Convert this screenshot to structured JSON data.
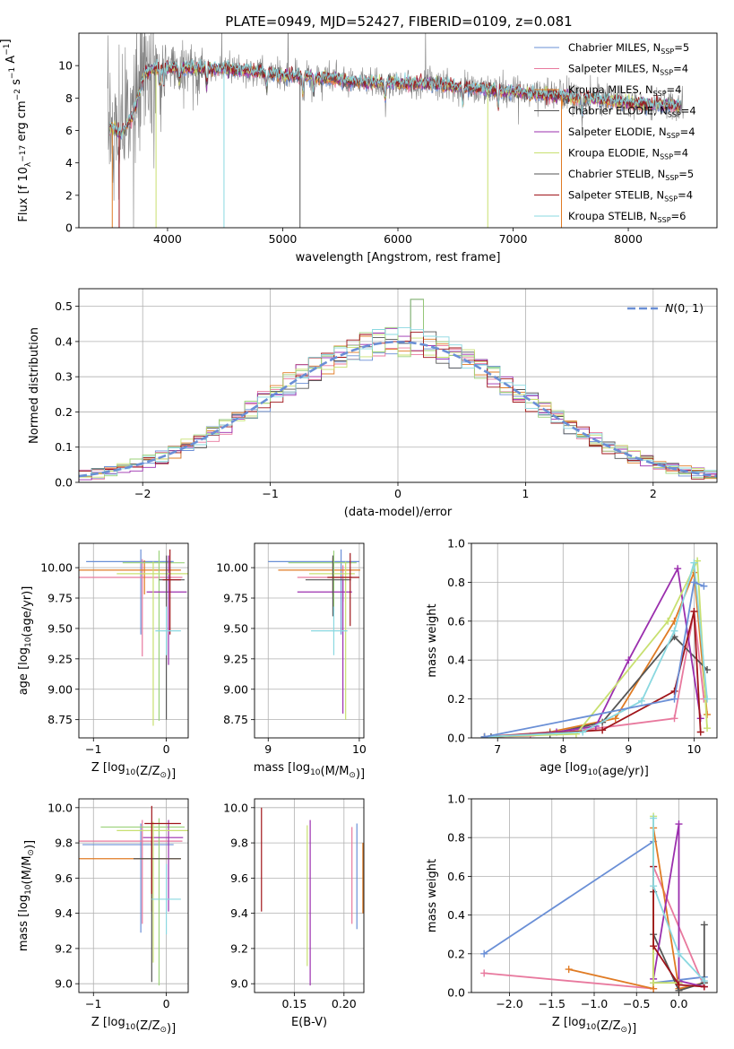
{
  "title": "PLATE=0949, MJD=52427, FIBERID=0109, z=0.081",
  "colors": [
    "#6a8fd6",
    "#e8799e",
    "#e07b24",
    "#555555",
    "#9b2fae",
    "#c8e070",
    "#9bd27a",
    "#a0151a",
    "#8ad8e0"
  ],
  "chart_data": [
    {
      "type": "line",
      "panel": "spectrum",
      "xlabel": "wavelength [Angstrom, rest frame]",
      "ylabel": "Flux [f_λ 10^-17 erg cm^-2 s^-1 A^-1]",
      "xlim": [
        3230,
        8770
      ],
      "ylim": [
        0,
        12
      ],
      "xticks": [
        4000,
        5000,
        6000,
        7000,
        8000
      ],
      "yticks": [
        0,
        2,
        4,
        6,
        8,
        10
      ],
      "grid": false,
      "legend_position": "right",
      "series": [
        {
          "name": "Chabrier MILES, N_SSP=5",
          "color": "#6a8fd6"
        },
        {
          "name": "Salpeter MILES, N_SSP=4",
          "color": "#e8799e"
        },
        {
          "name": "Kroupa MILES, N_SSP=4",
          "color": "#e07b24"
        },
        {
          "name": "Chabrier ELODIE, N_SSP=4",
          "color": "#555555"
        },
        {
          "name": "Salpeter ELODIE, N_SSP=4",
          "color": "#9b2fae"
        },
        {
          "name": "Kroupa ELODIE, N_SSP=4",
          "color": "#c8e070"
        },
        {
          "name": "Chabrier STELIB, N_SSP=5",
          "color": "#555555"
        },
        {
          "name": "Salpeter STELIB, N_SSP=4",
          "color": "#a0151a"
        },
        {
          "name": "Kroupa STELIB, N_SSP=6",
          "color": "#8ad8e0"
        }
      ],
      "continuum_points": {
        "x": [
          3500,
          3600,
          3700,
          3800,
          3900,
          4000,
          4200,
          4500,
          4800,
          5000,
          5300,
          5600,
          6000,
          6300,
          6600,
          7000,
          7300,
          7600,
          8000,
          8400
        ],
        "y": [
          6.2,
          5.8,
          7.0,
          9.6,
          9.8,
          9.9,
          9.8,
          9.8,
          9.6,
          9.4,
          9.3,
          9.0,
          8.9,
          8.9,
          8.6,
          8.4,
          8.2,
          8.0,
          7.7,
          7.5
        ]
      }
    },
    {
      "type": "step",
      "panel": "residuals",
      "xlabel": "(data-model)/error",
      "ylabel": "Normed distribution",
      "xlim": [
        -2.5,
        2.5
      ],
      "ylim": [
        0,
        0.55
      ],
      "xticks": [
        -2,
        -1,
        0,
        1,
        2
      ],
      "yticks": [
        0.0,
        0.1,
        0.2,
        0.3,
        0.4,
        0.5
      ],
      "grid": true,
      "legend_position": "top-right",
      "legend": "N(0,1)",
      "bin_width": 0.1
    },
    {
      "type": "scatter",
      "panel": "age-vs-Z",
      "xlabel": "Z [log10(Z/Z⊙)]",
      "ylabel": "age [log10(age/yr)]",
      "xlim": [
        -1.2,
        0.3
      ],
      "ylim": [
        8.6,
        10.2
      ],
      "xticks": [
        -1,
        0
      ],
      "yticks": [
        8.75,
        9.0,
        9.25,
        9.5,
        9.75,
        10.0
      ],
      "grid": true,
      "points": [
        {
          "x": -0.35,
          "y": 10.05,
          "xerr": [
            0.75,
            0.45
          ],
          "yerr": [
            0.6,
            0.1
          ],
          "color": "#6a8fd6"
        },
        {
          "x": -0.33,
          "y": 9.92,
          "xerr": [
            0.87,
            0.55
          ],
          "yerr": [
            0.65,
            0.15
          ],
          "color": "#e8799e"
        },
        {
          "x": -0.3,
          "y": 9.98,
          "xerr": [
            0.9,
            0.5
          ],
          "yerr": [
            0.2,
            0.08
          ],
          "color": "#e07b24"
        },
        {
          "x": -0.1,
          "y": 10.04,
          "xerr": [
            0.5,
            0.35
          ],
          "yerr": [
            1.3,
            0.1
          ],
          "color": "#9bd27a"
        },
        {
          "x": 0.03,
          "y": 9.8,
          "xerr": [
            0.3,
            0.25
          ],
          "yerr": [
            0.6,
            0.3
          ],
          "color": "#9b2fae"
        },
        {
          "x": -0.18,
          "y": 9.95,
          "xerr": [
            0.5,
            0.5
          ],
          "yerr": [
            1.25,
            0.1
          ],
          "color": "#c8e070"
        },
        {
          "x": 0.0,
          "y": 9.9,
          "xerr": [
            0.1,
            0.25
          ],
          "yerr": [
            1.15,
            0.2
          ],
          "color": "#555555"
        },
        {
          "x": 0.05,
          "y": 9.9,
          "xerr": [
            0.1,
            0.15
          ],
          "yerr": [
            0.45,
            0.25
          ],
          "color": "#a0151a"
        },
        {
          "x": 0.0,
          "y": 9.48,
          "xerr": [
            0.15,
            0.2
          ],
          "yerr": [
            0.2,
            0.2
          ],
          "color": "#8ad8e0"
        }
      ]
    },
    {
      "type": "scatter",
      "panel": "age-vs-mass",
      "xlabel": "mass [log10(M/M⊙)]",
      "ylabel": "",
      "xlim": [
        8.85,
        10.05
      ],
      "ylim": [
        8.6,
        10.2
      ],
      "xticks": [
        9,
        10
      ],
      "yticks": [
        8.75,
        9.0,
        9.25,
        9.5,
        9.75,
        10.0
      ],
      "grid": true,
      "points": [
        {
          "x": 9.8,
          "y": 10.05,
          "xerr": [
            0.8,
            0.2
          ],
          "yerr": [
            0.6,
            0.1
          ],
          "color": "#6a8fd6"
        },
        {
          "x": 9.82,
          "y": 9.92,
          "xerr": [
            0.5,
            0.1
          ],
          "yerr": [
            0.2,
            0.1
          ],
          "color": "#e8799e"
        },
        {
          "x": 9.71,
          "y": 9.98,
          "xerr": [
            0.6,
            0.3
          ],
          "yerr": [
            0.2,
            0.1
          ],
          "color": "#e07b24"
        },
        {
          "x": 9.72,
          "y": 10.04,
          "xerr": [
            0.5,
            0.25
          ],
          "yerr": [
            0.4,
            0.1
          ],
          "color": "#9bd27a"
        },
        {
          "x": 9.82,
          "y": 9.8,
          "xerr": [
            0.5,
            0.1
          ],
          "yerr": [
            1.0,
            0.1
          ],
          "color": "#9b2fae"
        },
        {
          "x": 9.85,
          "y": 9.95,
          "xerr": [
            0.4,
            0.1
          ],
          "yerr": [
            1.2,
            0.1
          ],
          "color": "#c8e070"
        },
        {
          "x": 9.71,
          "y": 9.9,
          "xerr": [
            0.3,
            0.2
          ],
          "yerr": [
            0.3,
            0.2
          ],
          "color": "#555555"
        },
        {
          "x": 9.9,
          "y": 9.92,
          "xerr": [
            0.25,
            0.1
          ],
          "yerr": [
            0.4,
            0.2
          ],
          "color": "#a0151a"
        },
        {
          "x": 9.72,
          "y": 9.48,
          "xerr": [
            0.25,
            0.15
          ],
          "yerr": [
            0.2,
            0.2
          ],
          "color": "#8ad8e0"
        }
      ]
    },
    {
      "type": "line",
      "panel": "mass-weight-vs-age",
      "xlabel": "age [log10(age/yr)]",
      "ylabel": "mass weight",
      "xlim": [
        6.6,
        10.35
      ],
      "ylim": [
        0,
        1
      ],
      "xticks": [
        7,
        8,
        9,
        10
      ],
      "yticks": [
        0.0,
        0.2,
        0.4,
        0.6,
        0.8,
        1.0
      ],
      "grid": true,
      "series": [
        {
          "color": "#e8799e",
          "x": [
            6.8,
            7.5,
            8.3,
            9.7,
            10.0,
            10.15
          ],
          "y": [
            0.005,
            0.01,
            0.04,
            0.1,
            0.65,
            0.2
          ]
        },
        {
          "color": "#e07b24",
          "x": [
            6.8,
            7.8,
            8.8,
            9.7,
            10.0,
            10.2
          ],
          "y": [
            0.005,
            0.03,
            0.1,
            0.6,
            0.85,
            0.12
          ]
        },
        {
          "color": "#555555",
          "x": [
            6.9,
            7.8,
            8.6,
            9.7,
            10.2
          ],
          "y": [
            0.005,
            0.02,
            0.08,
            0.52,
            0.35
          ]
        },
        {
          "color": "#9b2fae",
          "x": [
            6.8,
            7.9,
            8.5,
            9.0,
            9.75,
            10.1
          ],
          "y": [
            0.005,
            0.03,
            0.06,
            0.4,
            0.87,
            0.1
          ]
        },
        {
          "color": "#c8e070",
          "x": [
            6.8,
            8.2,
            9.6,
            10.05,
            10.2
          ],
          "y": [
            0.005,
            0.02,
            0.6,
            0.91,
            0.05
          ]
        },
        {
          "color": "#a0151a",
          "x": [
            6.8,
            8.6,
            9.7,
            10.0,
            10.1
          ],
          "y": [
            0.005,
            0.04,
            0.24,
            0.65,
            0.03
          ]
        },
        {
          "color": "#8ad8e0",
          "x": [
            6.8,
            8.3,
            9.2,
            9.7,
            10.0,
            10.2
          ],
          "y": [
            0.005,
            0.03,
            0.19,
            0.55,
            0.9,
            0.2
          ]
        },
        {
          "color": "#6a8fd6",
          "x": [
            6.8,
            9.7,
            10.0,
            10.15
          ],
          "y": [
            0.005,
            0.2,
            0.8,
            0.78
          ]
        }
      ]
    },
    {
      "type": "scatter",
      "panel": "mass-vs-Z",
      "xlabel": "Z [log10(Z/Z⊙)]",
      "ylabel": "mass [log10(M/M⊙)]",
      "xlim": [
        -1.2,
        0.3
      ],
      "ylim": [
        8.95,
        10.05
      ],
      "xticks": [
        -1,
        0
      ],
      "yticks": [
        9.0,
        9.2,
        9.4,
        9.6,
        9.8,
        10.0
      ],
      "grid": true,
      "points": [
        {
          "x": -0.35,
          "y": 9.79,
          "xerr": [
            0.8,
            0.45
          ],
          "yerr": [
            0.5,
            0.12
          ],
          "color": "#6a8fd6"
        },
        {
          "x": -0.33,
          "y": 9.81,
          "xerr": [
            0.87,
            0.55
          ],
          "yerr": [
            0.47,
            0.12
          ],
          "color": "#e8799e"
        },
        {
          "x": -0.2,
          "y": 9.71,
          "xerr": [
            1.0,
            0.4
          ],
          "yerr": [
            0.3,
            0.2
          ],
          "color": "#e07b24"
        },
        {
          "x": -0.1,
          "y": 9.89,
          "xerr": [
            0.8,
            0.35
          ],
          "yerr": [
            0.9,
            0.05
          ],
          "color": "#9bd27a"
        },
        {
          "x": 0.03,
          "y": 9.83,
          "xerr": [
            0.35,
            0.2
          ],
          "yerr": [
            0.42,
            0.1
          ],
          "color": "#9b2fae"
        },
        {
          "x": -0.18,
          "y": 9.87,
          "xerr": [
            0.5,
            0.5
          ],
          "yerr": [
            0.75,
            0.05
          ],
          "color": "#c8e070"
        },
        {
          "x": -0.2,
          "y": 9.71,
          "xerr": [
            0.25,
            0.4
          ],
          "yerr": [
            0.7,
            0.1
          ],
          "color": "#555555"
        },
        {
          "x": -0.2,
          "y": 9.91,
          "xerr": [
            0.1,
            0.4
          ],
          "yerr": [
            0.4,
            0.1
          ],
          "color": "#a0151a"
        },
        {
          "x": 0.0,
          "y": 9.48,
          "xerr": [
            0.2,
            0.2
          ],
          "yerr": [
            0.2,
            0.2
          ],
          "color": "#8ad8e0"
        }
      ]
    },
    {
      "type": "scatter",
      "panel": "mass-vs-EBV",
      "xlabel": "E(B-V)",
      "ylabel": "",
      "xlim": [
        0.11,
        0.22
      ],
      "ylim": [
        8.95,
        10.05
      ],
      "xticks": [
        0.15,
        0.2
      ],
      "yticks": [
        9.0,
        9.2,
        9.4,
        9.6,
        9.8,
        10.0
      ],
      "grid": true,
      "points": [
        {
          "x": 0.117,
          "y": 9.91,
          "yerr": [
            0.5,
            0.09
          ],
          "color": "#a0151a"
        },
        {
          "x": 0.166,
          "y": 9.89,
          "yerr": [
            0.9,
            0.04
          ],
          "color": "#9b2fae"
        },
        {
          "x": 0.163,
          "y": 9.8,
          "yerr": [
            0.7,
            0.1
          ],
          "color": "#c8e070"
        },
        {
          "x": 0.208,
          "y": 9.77,
          "yerr": [
            0.43,
            0.12
          ],
          "color": "#e8799e"
        },
        {
          "x": 0.213,
          "y": 9.81,
          "yerr": [
            0.5,
            0.1
          ],
          "color": "#6a8fd6"
        },
        {
          "x": 0.219,
          "y": 9.7,
          "yerr": [
            0.3,
            0.1
          ],
          "color": "#e07b24"
        }
      ]
    },
    {
      "type": "line",
      "panel": "mass-weight-vs-Z",
      "xlabel": "Z [log10(Z/Z⊙)]",
      "ylabel": "mass weight",
      "xlim": [
        -2.45,
        0.45
      ],
      "ylim": [
        0,
        1
      ],
      "xticks": [
        -2.0,
        -1.5,
        -1.0,
        -0.5,
        0.0
      ],
      "yticks": [
        0.0,
        0.2,
        0.4,
        0.6,
        0.8,
        1.0
      ],
      "grid": true,
      "series": [
        {
          "color": "#6a8fd6",
          "x": [
            -2.3,
            -0.3,
            -0.3,
            0.3
          ],
          "y": [
            0.2,
            0.78,
            0.05,
            0.08
          ]
        },
        {
          "color": "#e8799e",
          "x": [
            -2.3,
            -0.3,
            -0.3,
            0.3
          ],
          "y": [
            0.1,
            0.02,
            0.65,
            0.03
          ]
        },
        {
          "color": "#e07b24",
          "x": [
            -1.3,
            -0.3,
            -0.3,
            0.0,
            0.3
          ],
          "y": [
            0.12,
            0.02,
            0.85,
            0.02,
            0.05
          ]
        },
        {
          "color": "#555555",
          "x": [
            -0.3,
            -0.3,
            0.0,
            0.3,
            0.3
          ],
          "y": [
            0.52,
            0.3,
            0.01,
            0.05,
            0.35
          ]
        },
        {
          "color": "#9b2fae",
          "x": [
            -0.3,
            0.0,
            0.0,
            0.3
          ],
          "y": [
            0.07,
            0.87,
            0.06,
            0.03
          ]
        },
        {
          "color": "#c8e070",
          "x": [
            -0.3,
            -0.3,
            0.0
          ],
          "y": [
            0.91,
            0.05,
            0.05
          ]
        },
        {
          "color": "#a0151a",
          "x": [
            -0.3,
            -0.3,
            0.0,
            0.3
          ],
          "y": [
            0.65,
            0.24,
            0.04,
            0.03
          ]
        },
        {
          "color": "#8ad8e0",
          "x": [
            -0.3,
            -0.3,
            0.0,
            0.3
          ],
          "y": [
            0.9,
            0.55,
            0.2,
            0.06
          ]
        }
      ]
    }
  ]
}
